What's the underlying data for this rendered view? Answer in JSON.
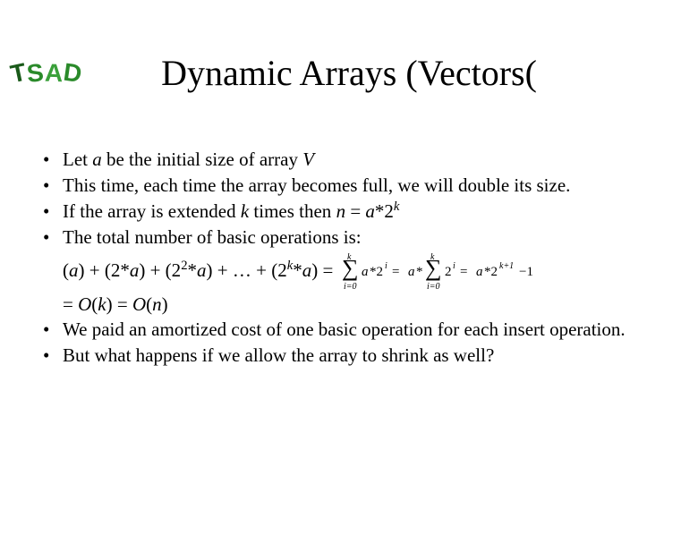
{
  "logo": {
    "c1": "T",
    "c2": "S",
    "c3": "A",
    "c4": "D"
  },
  "title": "Dynamic Arrays (Vectors(",
  "bullets": {
    "b1_pre": "Let ",
    "b1_var": "a",
    "b1_post": " be the initial size of array ",
    "b1_arr": "V",
    "b2": "This time, each time the array becomes full, we will double its size.",
    "b3_pre": "If the array is extended ",
    "b3_k": "k",
    "b3_mid": " times then ",
    "b3_n": "n",
    "b3_eq": " = ",
    "b3_a": "a",
    "b3_star": "*2",
    "b3_exp": "k",
    "b4": "The total number of basic operations is:",
    "line5": "(a) + (2*a) + (2",
    "line5_e1": "2",
    "line5_m": "*a) + … + (2",
    "line5_e2": "k",
    "line5_end": "*a) =",
    "line6_pre": "= ",
    "line6_O1": "O",
    "line6_p1": "(",
    "line6_k": "k",
    "line6_p2": ") = ",
    "line6_O2": "O",
    "line6_p3": "(",
    "line6_n": "n",
    "line6_p4": ")",
    "b5": "We paid an amortized cost of one basic operation for each insert operation.",
    "b6": "But what happens if we allow the array to shrink as well?"
  },
  "formula": {
    "color": "#000000",
    "fontsize": 15,
    "sum1_lower": "i=0",
    "sum1_upper": "k",
    "term1": "a*2",
    "exp1": "i",
    "eq1": " = a*",
    "sum2_lower": "i=0",
    "sum2_upper": "k",
    "term2": "2",
    "exp2": "i",
    "eq2": " = a*2",
    "exp3": "k+1",
    "tail": " −1"
  }
}
